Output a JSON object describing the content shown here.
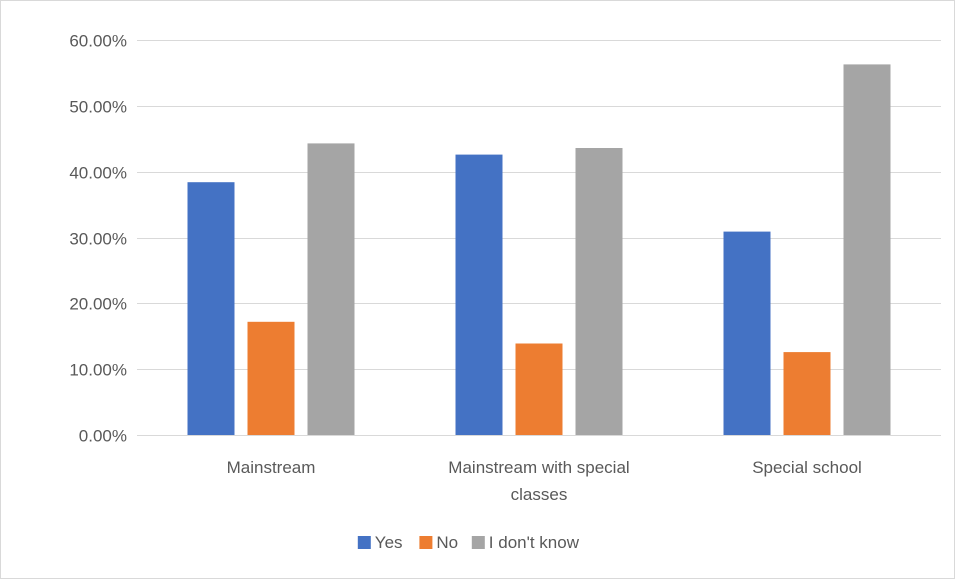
{
  "chart_data": {
    "type": "bar",
    "categories": [
      [
        "Mainstream"
      ],
      [
        "Mainstream with special",
        "classes"
      ],
      [
        "Special school"
      ]
    ],
    "series": [
      {
        "name": "Yes",
        "values": [
          0.384,
          0.426,
          0.309
        ],
        "color": "#4472c4"
      },
      {
        "name": "No",
        "values": [
          0.172,
          0.139,
          0.126
        ],
        "color": "#ed7d31"
      },
      {
        "name": "I don't know",
        "values": [
          0.443,
          0.436,
          0.563
        ],
        "color": "#a5a5a5"
      }
    ],
    "ylim": [
      0,
      0.6
    ],
    "yticks": [
      {
        "value": 0.0,
        "label": "0.00%"
      },
      {
        "value": 0.1,
        "label": "10.00%"
      },
      {
        "value": 0.2,
        "label": "20.00%"
      },
      {
        "value": 0.3,
        "label": "30.00%"
      },
      {
        "value": 0.4,
        "label": "40.00%"
      },
      {
        "value": 0.5,
        "label": "50.00%"
      },
      {
        "value": 0.6,
        "label": "60.00%"
      }
    ],
    "grid": true,
    "gridline_color": "#d9d9d9",
    "legend_position": "bottom"
  }
}
